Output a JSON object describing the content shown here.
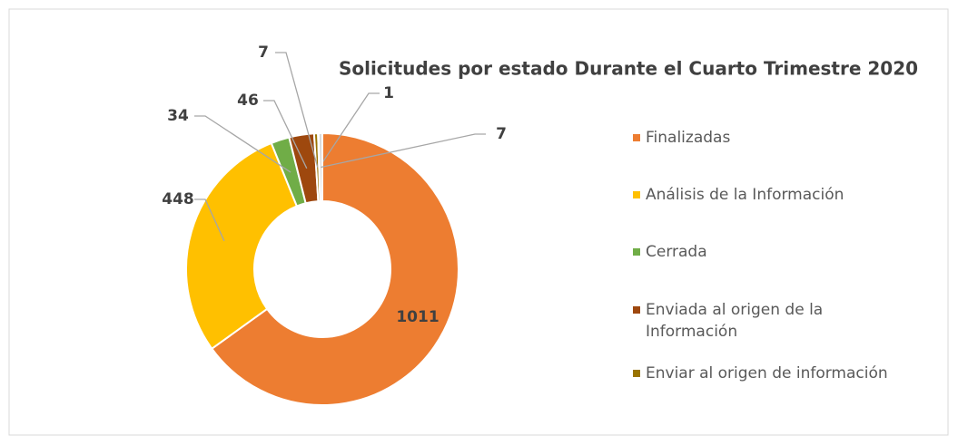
{
  "chart_data": {
    "type": "donut",
    "title": "Solicitudes por estado Durante el Cuarto Trimestre 2020",
    "categories": [
      "Finalizadas",
      "Análisis de la Información",
      "Cerrada",
      "Enviada al origen de la Información",
      "Enviar al origen de información",
      null,
      null
    ],
    "values": [
      1011,
      448,
      34,
      46,
      7,
      1,
      7
    ],
    "colors": [
      "#ED7D31",
      "#FFC000",
      "#70AD47",
      "#9E480E",
      "#997300",
      "#F4B183",
      "#D9D9D9"
    ],
    "legend": "right"
  }
}
